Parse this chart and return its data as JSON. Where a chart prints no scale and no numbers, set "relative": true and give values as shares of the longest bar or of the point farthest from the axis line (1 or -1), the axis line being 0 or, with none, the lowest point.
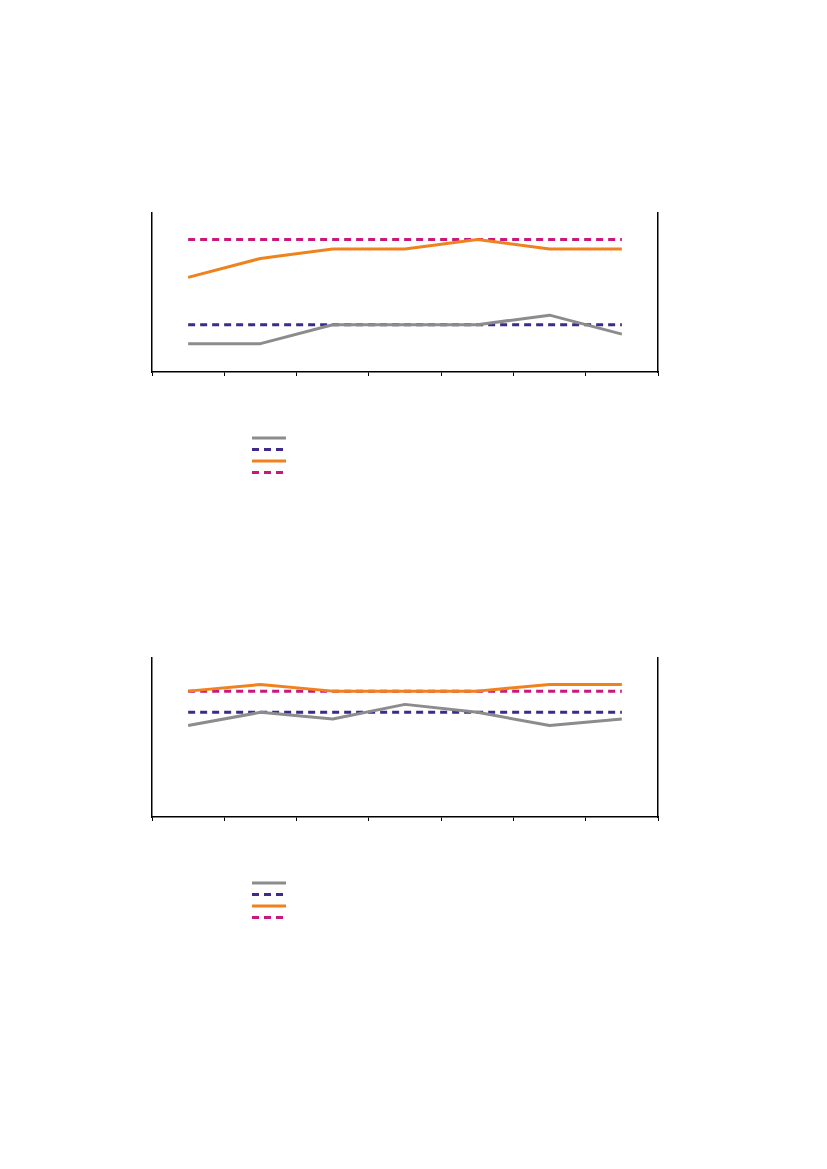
{
  "chart_data": [
    {
      "type": "line",
      "relative": true,
      "categories": [
        null,
        null,
        null,
        null,
        null,
        null,
        null
      ],
      "grid": false,
      "marker": "none",
      "series": [
        {
          "color": "#8c8c8c",
          "line_style": "solid",
          "values": [
            0.214,
            0.214,
            0.357,
            0.357,
            0.357,
            0.429,
            0.286
          ]
        },
        {
          "color": "#3f2a8c",
          "line_style": "dashed",
          "values": [
            0.357,
            0.357,
            0.357,
            0.357,
            0.357,
            0.357,
            0.357
          ]
        },
        {
          "color": "#f0821e",
          "line_style": "solid",
          "values": [
            0.714,
            0.857,
            0.929,
            0.929,
            1,
            0.929,
            0.929
          ]
        },
        {
          "color": "#c8187f",
          "line_style": "dashed",
          "values": [
            1,
            1,
            1,
            1,
            1,
            1,
            1
          ]
        }
      ]
    },
    {
      "type": "line",
      "relative": true,
      "categories": [
        null,
        null,
        null,
        null,
        null,
        null,
        null
      ],
      "grid": false,
      "marker": "none",
      "series": [
        {
          "color": "#8c8c8c",
          "line_style": "solid",
          "values": [
            0.69,
            0.79,
            0.74,
            0.85,
            0.79,
            0.69,
            0.74
          ]
        },
        {
          "color": "#3f2a8c",
          "line_style": "dashed",
          "values": [
            0.79,
            0.79,
            0.79,
            0.79,
            0.79,
            0.79,
            0.79
          ]
        },
        {
          "color": "#f0821e",
          "line_style": "solid",
          "values": [
            0.95,
            1,
            0.95,
            0.95,
            0.95,
            1,
            1
          ]
        },
        {
          "color": "#c8187f",
          "line_style": "dashed",
          "values": [
            0.95,
            0.95,
            0.95,
            0.95,
            0.95,
            0.95,
            0.95
          ]
        }
      ]
    }
  ]
}
